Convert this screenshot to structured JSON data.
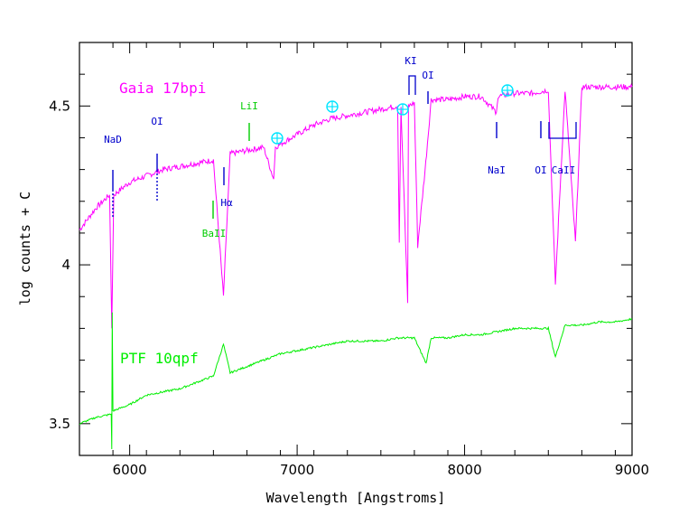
{
  "chart_data": {
    "type": "line",
    "title": "",
    "xlabel": "Wavelength [Angstroms]",
    "ylabel": "log counts + C",
    "xlim": [
      5700,
      9000
    ],
    "ylim": [
      3.4,
      4.7
    ],
    "x_ticks": [
      6000,
      7000,
      8000,
      9000
    ],
    "x_tick_labels": [
      "6000",
      "7000",
      "8000",
      "9000"
    ],
    "y_ticks": [
      3.5,
      4,
      4.5
    ],
    "y_tick_labels": [
      "3.5",
      "4",
      "4.5"
    ],
    "grid": false,
    "legend": "none",
    "series": [
      {
        "name": "Gaia 17bpi",
        "color": "#ff00ff",
        "x": [
          5700,
          5800,
          5880,
          5893,
          5905,
          6000,
          6100,
          6200,
          6300,
          6400,
          6500,
          6560,
          6600,
          6700,
          6800,
          6860,
          6870,
          6900,
          7000,
          7100,
          7200,
          7300,
          7400,
          7500,
          7600,
          7610,
          7620,
          7660,
          7665,
          7700,
          7720,
          7773,
          7800,
          7900,
          8000,
          8100,
          8190,
          8200,
          8300,
          8400,
          8500,
          8542,
          8600,
          8662,
          8700,
          8800,
          8900,
          9000
        ],
        "y": [
          4.11,
          4.18,
          4.22,
          3.8,
          4.22,
          4.26,
          4.28,
          4.3,
          4.31,
          4.32,
          4.33,
          3.9,
          4.35,
          4.36,
          4.37,
          4.27,
          4.37,
          4.38,
          4.41,
          4.44,
          4.46,
          4.47,
          4.48,
          4.49,
          4.5,
          4.07,
          4.5,
          3.88,
          4.5,
          4.51,
          4.06,
          4.35,
          4.52,
          4.52,
          4.53,
          4.53,
          4.48,
          4.53,
          4.54,
          4.54,
          4.55,
          3.94,
          4.55,
          4.07,
          4.56,
          4.56,
          4.56,
          4.56
        ]
      },
      {
        "name": "PTF 10qpf",
        "color": "#00ee00",
        "x": [
          5700,
          5800,
          5890,
          5893,
          5896,
          5900,
          6000,
          6100,
          6200,
          6300,
          6400,
          6500,
          6560,
          6600,
          6700,
          6800,
          6900,
          7000,
          7100,
          7200,
          7300,
          7400,
          7500,
          7600,
          7700,
          7770,
          7800,
          7900,
          8000,
          8100,
          8200,
          8300,
          8400,
          8500,
          8542,
          8600,
          8700,
          8800,
          8900,
          9000
        ],
        "y": [
          3.5,
          3.52,
          3.53,
          3.42,
          3.85,
          3.54,
          3.56,
          3.59,
          3.6,
          3.61,
          3.63,
          3.65,
          3.75,
          3.66,
          3.68,
          3.7,
          3.72,
          3.73,
          3.74,
          3.75,
          3.76,
          3.76,
          3.76,
          3.77,
          3.77,
          3.69,
          3.77,
          3.77,
          3.78,
          3.78,
          3.79,
          3.8,
          3.8,
          3.8,
          3.71,
          3.81,
          3.81,
          3.82,
          3.82,
          3.83
        ]
      }
    ],
    "annotations": {
      "gaia_label": "Gaia 17bpi",
      "ptf_label": "PTF 10qpf",
      "lines": [
        {
          "text": "NaD",
          "color": "#0000cc"
        },
        {
          "text": "OI",
          "color": "#0000cc"
        },
        {
          "text": "Hα",
          "color": "#0000cc"
        },
        {
          "text": "BaII",
          "color": "#00cc00"
        },
        {
          "text": "LiI",
          "color": "#00cc00"
        },
        {
          "text": "KI",
          "color": "#0000cc"
        },
        {
          "text": "OI",
          "color": "#0000cc"
        },
        {
          "text": "NaI",
          "color": "#0000cc"
        },
        {
          "text": "OI",
          "color": "#0000cc"
        },
        {
          "text": "CaII",
          "color": "#0000cc"
        }
      ],
      "telluric_symbol": "⊕",
      "telluric_color": "#00e5ff"
    }
  }
}
